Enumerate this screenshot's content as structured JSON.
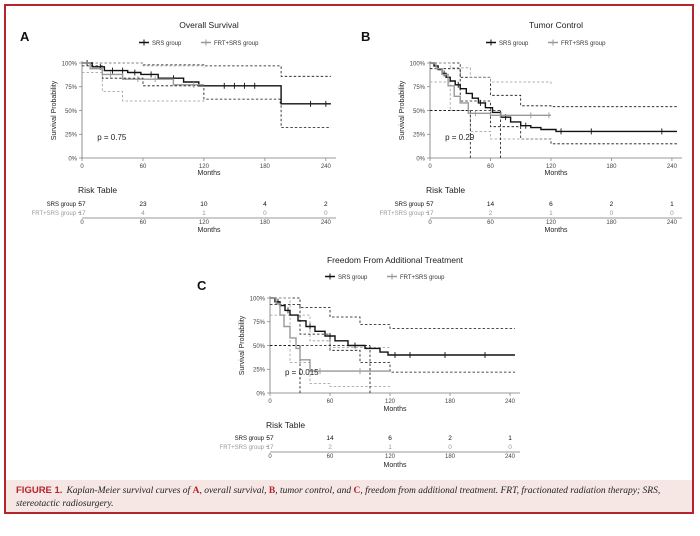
{
  "chart_data": [
    {
      "panel": "A",
      "type": "line",
      "title": "Overall Survival",
      "xlabel": "Months",
      "ylabel": "Survival Probability",
      "xlim": [
        0,
        250
      ],
      "ylim": [
        0,
        1
      ],
      "xticks": [
        "0",
        "60",
        "120",
        "180",
        "240"
      ],
      "xtick_values": [
        0,
        60,
        120,
        180,
        240
      ],
      "yticks": [
        "0%",
        "25%",
        "50%",
        "75%",
        "100%"
      ],
      "ytick_values": [
        0,
        0.25,
        0.5,
        0.75,
        1
      ],
      "legend": [
        "SRS group",
        "FRT+SRS group"
      ],
      "legend_position": "top",
      "pvalue": "p = 0.75",
      "series": [
        {
          "name": "SRS group",
          "color": "#111111",
          "steps": [
            [
              0,
              1.0
            ],
            [
              10,
              0.96
            ],
            [
              22,
              0.92
            ],
            [
              45,
              0.9
            ],
            [
              58,
              0.88
            ],
            [
              75,
              0.84
            ],
            [
              100,
              0.8
            ],
            [
              115,
              0.76
            ],
            [
              195,
              0.76
            ],
            [
              196,
              0.57
            ],
            [
              245,
              0.57
            ]
          ],
          "censors": [
            [
              5,
              1.0
            ],
            [
              18,
              0.96
            ],
            [
              30,
              0.92
            ],
            [
              40,
              0.92
            ],
            [
              52,
              0.9
            ],
            [
              68,
              0.88
            ],
            [
              90,
              0.84
            ],
            [
              140,
              0.76
            ],
            [
              150,
              0.76
            ],
            [
              160,
              0.76
            ],
            [
              170,
              0.76
            ],
            [
              225,
              0.57
            ],
            [
              240,
              0.57
            ]
          ]
        },
        {
          "name": "FRT+SRS group",
          "color": "#999999",
          "steps": [
            [
              0,
              1.0
            ],
            [
              8,
              0.94
            ],
            [
              20,
              0.88
            ],
            [
              40,
              0.83
            ],
            [
              90,
              0.77
            ],
            [
              120,
              0.77
            ]
          ],
          "censors": [
            [
              28,
              0.88
            ],
            [
              55,
              0.83
            ],
            [
              72,
              0.83
            ],
            [
              110,
              0.77
            ]
          ]
        }
      ],
      "ci": [
        {
          "color": "#111111",
          "upper": [
            [
              0,
              1.0
            ],
            [
              60,
              0.98
            ],
            [
              120,
              0.97
            ],
            [
              195,
              0.97
            ],
            [
              196,
              0.86
            ],
            [
              245,
              0.86
            ]
          ],
          "lower": [
            [
              0,
              0.97
            ],
            [
              20,
              0.84
            ],
            [
              60,
              0.76
            ],
            [
              120,
              0.62
            ],
            [
              195,
              0.58
            ],
            [
              196,
              0.32
            ],
            [
              245,
              0.32
            ]
          ]
        },
        {
          "color": "#999999",
          "upper": [
            [
              0,
              1.0
            ],
            [
              60,
              0.97
            ],
            [
              120,
              0.95
            ]
          ],
          "lower": [
            [
              0,
              0.9
            ],
            [
              20,
              0.7
            ],
            [
              40,
              0.6
            ],
            [
              120,
              0.58
            ]
          ]
        }
      ],
      "risk_table": {
        "title": "Risk Table",
        "rows": [
          {
            "label": "SRS group",
            "color": "#111111",
            "values": [
              "57",
              "23",
              "10",
              "4",
              "2"
            ]
          },
          {
            "label": "FRT+SRS group",
            "color": "#999999",
            "values": [
              "17",
              "4",
              "1",
              "0",
              "0"
            ]
          }
        ],
        "xlabel": "Months"
      }
    },
    {
      "panel": "B",
      "type": "line",
      "title": "Tumor Control",
      "xlabel": "Months",
      "ylabel": "Survival Probability",
      "xlim": [
        0,
        250
      ],
      "ylim": [
        0,
        1
      ],
      "xticks": [
        "0",
        "60",
        "120",
        "180",
        "240"
      ],
      "xtick_values": [
        0,
        60,
        120,
        180,
        240
      ],
      "yticks": [
        "0%",
        "25%",
        "50%",
        "75%",
        "100%"
      ],
      "ytick_values": [
        0,
        0.25,
        0.5,
        0.75,
        1
      ],
      "legend": [
        "SRS group",
        "FRT+SRS group"
      ],
      "legend_position": "top",
      "pvalue": "p = 0.29",
      "median_lines": [
        40,
        70
      ],
      "series": [
        {
          "name": "SRS group",
          "color": "#111111",
          "steps": [
            [
              0,
              1.0
            ],
            [
              4,
              0.97
            ],
            [
              8,
              0.93
            ],
            [
              12,
              0.89
            ],
            [
              16,
              0.85
            ],
            [
              20,
              0.81
            ],
            [
              25,
              0.77
            ],
            [
              30,
              0.73
            ],
            [
              36,
              0.68
            ],
            [
              42,
              0.63
            ],
            [
              48,
              0.58
            ],
            [
              55,
              0.53
            ],
            [
              62,
              0.48
            ],
            [
              70,
              0.43
            ],
            [
              80,
              0.38
            ],
            [
              90,
              0.34
            ],
            [
              100,
              0.32
            ],
            [
              110,
              0.3
            ],
            [
              125,
              0.28
            ],
            [
              245,
              0.28
            ]
          ],
          "censors": [
            [
              6,
              0.97
            ],
            [
              14,
              0.89
            ],
            [
              28,
              0.77
            ],
            [
              50,
              0.58
            ],
            [
              75,
              0.43
            ],
            [
              95,
              0.34
            ],
            [
              130,
              0.28
            ],
            [
              160,
              0.28
            ],
            [
              230,
              0.28
            ]
          ]
        },
        {
          "name": "FRT+SRS group",
          "color": "#999999",
          "steps": [
            [
              0,
              1.0
            ],
            [
              6,
              0.94
            ],
            [
              12,
              0.88
            ],
            [
              18,
              0.76
            ],
            [
              24,
              0.65
            ],
            [
              30,
              0.58
            ],
            [
              38,
              0.47
            ],
            [
              60,
              0.45
            ],
            [
              120,
              0.45
            ]
          ],
          "censors": [
            [
              45,
              0.47
            ],
            [
              70,
              0.45
            ],
            [
              100,
              0.45
            ],
            [
              118,
              0.45
            ]
          ]
        }
      ],
      "ci": [
        {
          "color": "#111111",
          "upper": [
            [
              0,
              1.0
            ],
            [
              30,
              0.85
            ],
            [
              60,
              0.66
            ],
            [
              90,
              0.55
            ],
            [
              120,
              0.54
            ],
            [
              245,
              0.54
            ]
          ],
          "lower": [
            [
              0,
              0.94
            ],
            [
              30,
              0.6
            ],
            [
              60,
              0.33
            ],
            [
              90,
              0.2
            ],
            [
              120,
              0.15
            ],
            [
              245,
              0.15
            ]
          ]
        },
        {
          "color": "#999999",
          "upper": [
            [
              0,
              1.0
            ],
            [
              20,
              0.95
            ],
            [
              40,
              0.85
            ],
            [
              60,
              0.8
            ],
            [
              120,
              0.78
            ]
          ],
          "lower": [
            [
              0,
              0.8
            ],
            [
              20,
              0.5
            ],
            [
              40,
              0.28
            ],
            [
              60,
              0.2
            ],
            [
              120,
              0.2
            ]
          ]
        }
      ],
      "risk_table": {
        "title": "Risk Table",
        "rows": [
          {
            "label": "SRS group",
            "color": "#111111",
            "values": [
              "57",
              "14",
              "6",
              "2",
              "1"
            ]
          },
          {
            "label": "FRT+SRS group",
            "color": "#999999",
            "values": [
              "17",
              "2",
              "1",
              "0",
              "0"
            ]
          }
        ],
        "xlabel": "Months"
      }
    },
    {
      "panel": "C",
      "type": "line",
      "title": "Freedom From Additional Treatment",
      "xlabel": "Months",
      "ylabel": "Survival Probability",
      "xlim": [
        0,
        250
      ],
      "ylim": [
        0,
        1
      ],
      "xticks": [
        "0",
        "60",
        "120",
        "180",
        "240"
      ],
      "xtick_values": [
        0,
        60,
        120,
        180,
        240
      ],
      "yticks": [
        "0%",
        "25%",
        "50%",
        "75%",
        "100%"
      ],
      "ytick_values": [
        0,
        0.25,
        0.5,
        0.75,
        1
      ],
      "legend": [
        "SRS group",
        "FRT+SRS group"
      ],
      "legend_position": "top",
      "pvalue": "p = 0.015",
      "median_lines": [
        30,
        100
      ],
      "series": [
        {
          "name": "SRS group",
          "color": "#111111",
          "steps": [
            [
              0,
              1.0
            ],
            [
              5,
              0.96
            ],
            [
              10,
              0.92
            ],
            [
              15,
              0.87
            ],
            [
              20,
              0.82
            ],
            [
              28,
              0.76
            ],
            [
              36,
              0.7
            ],
            [
              45,
              0.65
            ],
            [
              55,
              0.6
            ],
            [
              65,
              0.55
            ],
            [
              78,
              0.5
            ],
            [
              95,
              0.47
            ],
            [
              110,
              0.43
            ],
            [
              118,
              0.4
            ],
            [
              245,
              0.4
            ]
          ],
          "censors": [
            [
              8,
              0.96
            ],
            [
              18,
              0.87
            ],
            [
              40,
              0.7
            ],
            [
              60,
              0.6
            ],
            [
              85,
              0.5
            ],
            [
              125,
              0.4
            ],
            [
              140,
              0.4
            ],
            [
              175,
              0.4
            ],
            [
              215,
              0.4
            ]
          ]
        },
        {
          "name": "FRT+SRS group",
          "color": "#999999",
          "steps": [
            [
              0,
              1.0
            ],
            [
              6,
              0.94
            ],
            [
              10,
              0.82
            ],
            [
              14,
              0.7
            ],
            [
              20,
              0.58
            ],
            [
              26,
              0.47
            ],
            [
              30,
              0.35
            ],
            [
              40,
              0.23
            ],
            [
              120,
              0.23
            ]
          ],
          "censors": [
            [
              50,
              0.23
            ],
            [
              90,
              0.23
            ]
          ]
        }
      ],
      "ci": [
        {
          "color": "#111111",
          "upper": [
            [
              0,
              1.0
            ],
            [
              30,
              0.9
            ],
            [
              60,
              0.8
            ],
            [
              90,
              0.72
            ],
            [
              120,
              0.68
            ],
            [
              245,
              0.68
            ]
          ],
          "lower": [
            [
              0,
              0.93
            ],
            [
              30,
              0.62
            ],
            [
              60,
              0.45
            ],
            [
              90,
              0.32
            ],
            [
              120,
              0.22
            ],
            [
              245,
              0.22
            ]
          ]
        },
        {
          "color": "#999999",
          "upper": [
            [
              0,
              1.0
            ],
            [
              20,
              0.82
            ],
            [
              40,
              0.55
            ],
            [
              60,
              0.48
            ],
            [
              120,
              0.48
            ]
          ],
          "lower": [
            [
              0,
              0.82
            ],
            [
              20,
              0.32
            ],
            [
              40,
              0.1
            ],
            [
              60,
              0.07
            ],
            [
              120,
              0.07
            ]
          ]
        }
      ],
      "risk_table": {
        "title": "Risk Table",
        "rows": [
          {
            "label": "SRS group",
            "color": "#111111",
            "values": [
              "57",
              "14",
              "6",
              "2",
              "1"
            ]
          },
          {
            "label": "FRT+SRS group",
            "color": "#999999",
            "values": [
              "17",
              "2",
              "1",
              "0",
              "0"
            ]
          }
        ],
        "xlabel": "Months"
      }
    }
  ],
  "caption": {
    "label": "FIGURE 1.",
    "parts": [
      "Kaplan-Meier survival curves of ",
      "A",
      ", overall survival, ",
      "B",
      ", tumor control, and ",
      "C",
      ", freedom from additional treatment. FRT, fractionated radiation therapy; SRS, stereotactic radiosurgery."
    ]
  }
}
